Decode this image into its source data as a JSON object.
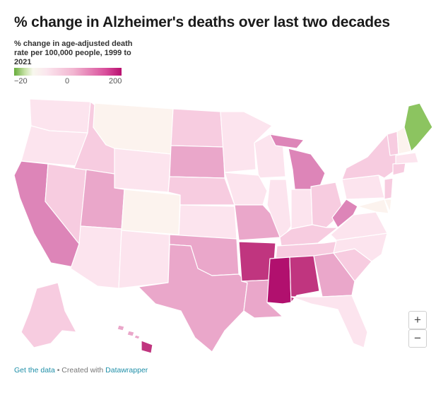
{
  "title": "% change in Alzheimer's deaths over last two decades",
  "legend": {
    "title": "% change in age-adjusted death rate per 100,000 people, 1999 to 2021",
    "ticks": [
      "−20",
      "0",
      "200"
    ]
  },
  "colors": {
    "neg_green": "#8cc460",
    "near_zero": "#fcf3ee",
    "very_light": "#fce4ee",
    "light": "#f7cce0",
    "medium": "#eaa7ca",
    "strong": "#dd85b8",
    "dark": "#c0357f",
    "darkest": "#b1106e"
  },
  "zoom": {
    "in": "+",
    "out": "−"
  },
  "footer": {
    "link": "Get the data",
    "separator": " • Created with ",
    "brand": "Datawrapper"
  }
}
